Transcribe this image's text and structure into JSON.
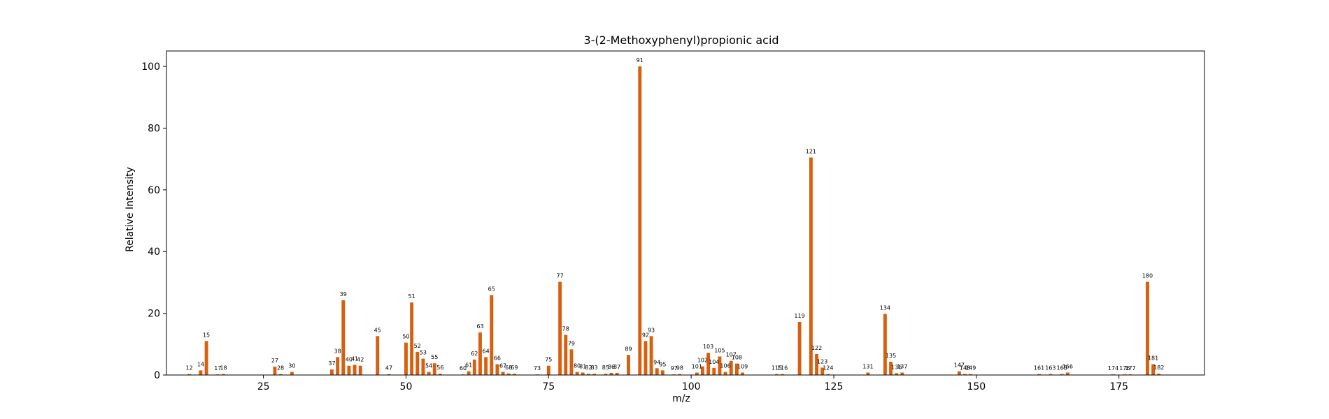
{
  "chart_data": {
    "type": "bar",
    "title": "3-(2-Methoxyphenyl)propionic acid",
    "xlabel": "m/z",
    "ylabel": "Relative Intensity",
    "xlim": [
      8,
      190
    ],
    "ylim": [
      0,
      105
    ],
    "xticks": [
      25,
      50,
      75,
      100,
      125,
      150,
      175
    ],
    "yticks": [
      0,
      20,
      40,
      60,
      80,
      100
    ],
    "bar_color": "#d95f0e",
    "points": [
      {
        "x": 12,
        "y": 0.3
      },
      {
        "x": 14,
        "y": 1.5
      },
      {
        "x": 15,
        "y": 11.0
      },
      {
        "x": 17,
        "y": 0.2
      },
      {
        "x": 18,
        "y": 0.3
      },
      {
        "x": 27,
        "y": 2.7
      },
      {
        "x": 28,
        "y": 0.3
      },
      {
        "x": 30,
        "y": 1.0
      },
      {
        "x": 37,
        "y": 1.8
      },
      {
        "x": 38,
        "y": 5.8
      },
      {
        "x": 39,
        "y": 24.2
      },
      {
        "x": 40,
        "y": 3.0
      },
      {
        "x": 41,
        "y": 3.3
      },
      {
        "x": 42,
        "y": 3.0
      },
      {
        "x": 45,
        "y": 12.6
      },
      {
        "x": 47,
        "y": 0.3
      },
      {
        "x": 50,
        "y": 10.5
      },
      {
        "x": 51,
        "y": 23.5
      },
      {
        "x": 52,
        "y": 7.5
      },
      {
        "x": 53,
        "y": 5.3
      },
      {
        "x": 54,
        "y": 1.0
      },
      {
        "x": 55,
        "y": 3.8
      },
      {
        "x": 56,
        "y": 0.4
      },
      {
        "x": 60,
        "y": 0.2
      },
      {
        "x": 61,
        "y": 1.2
      },
      {
        "x": 62,
        "y": 5.0
      },
      {
        "x": 63,
        "y": 13.8
      },
      {
        "x": 64,
        "y": 5.8
      },
      {
        "x": 65,
        "y": 25.9
      },
      {
        "x": 66,
        "y": 3.5
      },
      {
        "x": 67,
        "y": 1.0
      },
      {
        "x": 68,
        "y": 0.5
      },
      {
        "x": 69,
        "y": 0.4
      },
      {
        "x": 73,
        "y": 0.2
      },
      {
        "x": 75,
        "y": 3.0
      },
      {
        "x": 77,
        "y": 30.2
      },
      {
        "x": 78,
        "y": 13.0
      },
      {
        "x": 79,
        "y": 8.3
      },
      {
        "x": 80,
        "y": 1.0
      },
      {
        "x": 81,
        "y": 0.8
      },
      {
        "x": 82,
        "y": 0.4
      },
      {
        "x": 83,
        "y": 0.4
      },
      {
        "x": 85,
        "y": 0.4
      },
      {
        "x": 86,
        "y": 0.7
      },
      {
        "x": 87,
        "y": 0.7
      },
      {
        "x": 89,
        "y": 6.5
      },
      {
        "x": 91,
        "y": 100.0
      },
      {
        "x": 92,
        "y": 11.0
      },
      {
        "x": 93,
        "y": 12.6
      },
      {
        "x": 94,
        "y": 2.2
      },
      {
        "x": 95,
        "y": 1.5
      },
      {
        "x": 97,
        "y": 0.2
      },
      {
        "x": 98,
        "y": 0.3
      },
      {
        "x": 101,
        "y": 0.8
      },
      {
        "x": 102,
        "y": 2.8
      },
      {
        "x": 103,
        "y": 7.2
      },
      {
        "x": 104,
        "y": 2.3
      },
      {
        "x": 105,
        "y": 6.0
      },
      {
        "x": 106,
        "y": 1.0
      },
      {
        "x": 107,
        "y": 4.6
      },
      {
        "x": 108,
        "y": 3.7
      },
      {
        "x": 109,
        "y": 0.8
      },
      {
        "x": 115,
        "y": 0.3
      },
      {
        "x": 116,
        "y": 0.3
      },
      {
        "x": 119,
        "y": 17.2
      },
      {
        "x": 121,
        "y": 70.5
      },
      {
        "x": 122,
        "y": 6.8
      },
      {
        "x": 123,
        "y": 2.4
      },
      {
        "x": 124,
        "y": 0.3
      },
      {
        "x": 131,
        "y": 0.8
      },
      {
        "x": 134,
        "y": 19.8
      },
      {
        "x": 135,
        "y": 4.3
      },
      {
        "x": 136,
        "y": 0.6
      },
      {
        "x": 137,
        "y": 0.8
      },
      {
        "x": 147,
        "y": 1.2
      },
      {
        "x": 148,
        "y": 0.3
      },
      {
        "x": 149,
        "y": 0.3
      },
      {
        "x": 161,
        "y": 0.3
      },
      {
        "x": 163,
        "y": 0.3
      },
      {
        "x": 165,
        "y": 0.3
      },
      {
        "x": 166,
        "y": 0.8
      },
      {
        "x": 174,
        "y": 0.2
      },
      {
        "x": 176,
        "y": 0.2
      },
      {
        "x": 177,
        "y": 0.2
      },
      {
        "x": 180,
        "y": 30.2
      },
      {
        "x": 181,
        "y": 3.5
      },
      {
        "x": 182,
        "y": 0.4
      }
    ]
  }
}
